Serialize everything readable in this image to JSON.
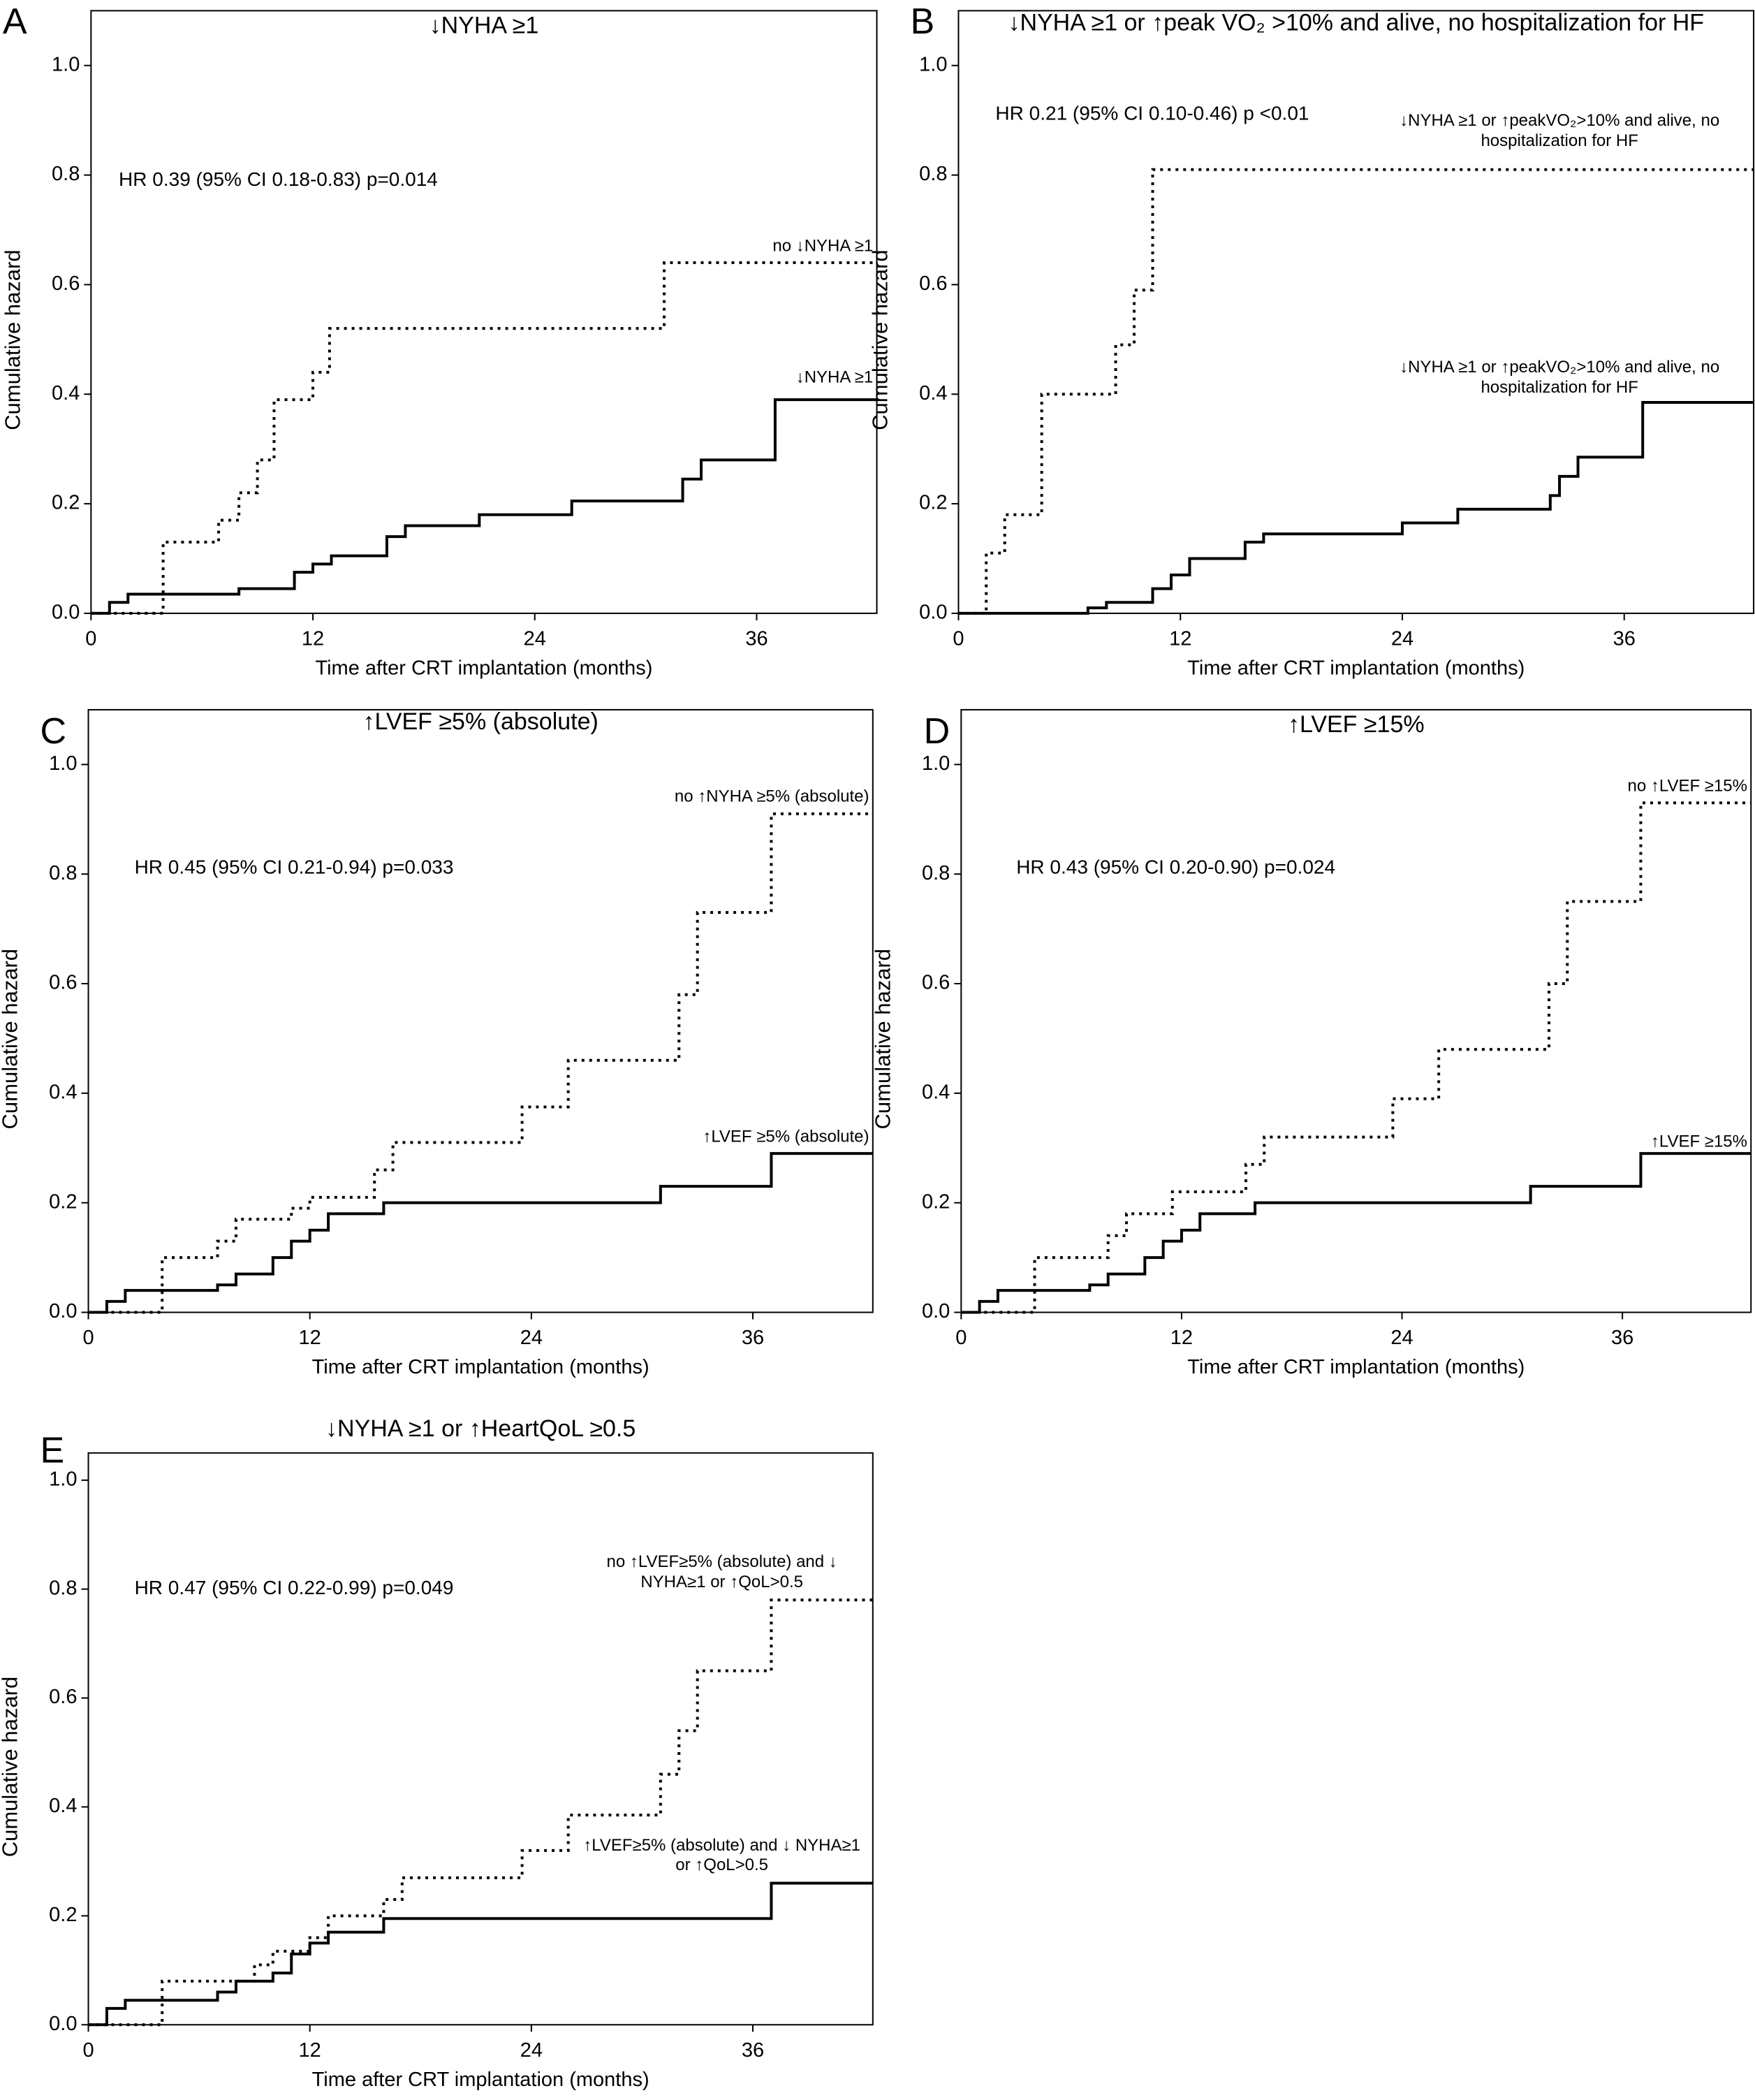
{
  "chart_data": [
    {
      "type": "line",
      "step": "post",
      "panel": "A",
      "title": "↓NYHA ≥1",
      "annotation": "HR 0.39 (95% CI 0.18-0.83) p=0.014",
      "xlabel": "Time after CRT implantation (months)",
      "ylabel": "Cumulative hazard",
      "xlim": [
        0,
        42.5
      ],
      "ylim": [
        0,
        1.1
      ],
      "xticks": [
        0,
        12,
        24,
        36
      ],
      "yticks": [
        {
          "value": 0,
          "label": "0.0"
        },
        0.2,
        0.4,
        0.6,
        0.8,
        {
          "value": 1,
          "label": "1.0"
        }
      ],
      "series": [
        {
          "name": "no ↓NYHA ≥1",
          "color": "#000000",
          "style": "dotted",
          "x": [
            0,
            3.9,
            6.9,
            8,
            9,
            9.9,
            12,
            12.9,
            31,
            42.5
          ],
          "values": [
            0,
            0.13,
            0.17,
            0.22,
            0.28,
            0.39,
            0.44,
            0.52,
            0.64,
            0.64
          ]
        },
        {
          "name": "↓NYHA ≥1",
          "color": "#000000",
          "style": "solid",
          "x": [
            0,
            1,
            2,
            8,
            11,
            12,
            13,
            16,
            17,
            21,
            26,
            32,
            33,
            37,
            42.5
          ],
          "values": [
            0,
            0.02,
            0.035,
            0.045,
            0.075,
            0.09,
            0.105,
            0.14,
            0.16,
            0.18,
            0.205,
            0.245,
            0.28,
            0.39,
            0.39
          ]
        }
      ]
    },
    {
      "type": "line",
      "step": "post",
      "panel": "B",
      "title": "↓NYHA ≥1 or ↑peak VO₂ >10% and alive, no hospitalization for HF",
      "annotation": "HR 0.21 (95% CI 0.10-0.46) p <0.01",
      "xlabel": "Time after CRT implantation (months)",
      "ylabel": "Cumulative hazard",
      "xlim": [
        0,
        43
      ],
      "ylim": [
        0,
        1.1
      ],
      "xticks": [
        0,
        12,
        24,
        36
      ],
      "yticks": [
        {
          "value": 0,
          "label": "0.0"
        },
        0.2,
        0.4,
        0.6,
        0.8,
        {
          "value": 1,
          "label": "1.0"
        }
      ],
      "series": [
        {
          "name": "↓NYHA ≥1 or ↑peakVO₂>10% and alive, no hospitalization for HF",
          "color": "#000000",
          "style": "dotted",
          "x": [
            0,
            1.5,
            2.5,
            4.5,
            8.5,
            9.5,
            10.5,
            43
          ],
          "values": [
            0,
            0.11,
            0.18,
            0.4,
            0.49,
            0.59,
            0.81,
            0.81
          ]
        },
        {
          "name": "↓NYHA ≥1 or ↑peakVO₂>10% and alive, no hospitalization for HF",
          "color": "#000000",
          "style": "solid",
          "x": [
            0,
            7,
            8,
            10.5,
            11.5,
            12.5,
            15.5,
            16.5,
            24,
            27,
            32,
            32.5,
            33.5,
            37,
            43
          ],
          "values": [
            0,
            0.01,
            0.02,
            0.045,
            0.07,
            0.1,
            0.13,
            0.145,
            0.165,
            0.19,
            0.215,
            0.25,
            0.285,
            0.385,
            0.385
          ]
        }
      ]
    },
    {
      "type": "line",
      "step": "post",
      "panel": "C",
      "title": "↑LVEF ≥5% (absolute)",
      "annotation": "HR 0.45 (95% CI 0.21-0.94) p=0.033",
      "xlabel": "Time after CRT implantation (months)",
      "ylabel": "Cumulative hazard",
      "xlim": [
        0,
        42.5
      ],
      "ylim": [
        0,
        1.1
      ],
      "xticks": [
        0,
        12,
        24,
        36
      ],
      "yticks": [
        {
          "value": 0,
          "label": "0.0"
        },
        0.2,
        0.4,
        0.6,
        0.8,
        {
          "value": 1,
          "label": "1.0"
        }
      ],
      "series": [
        {
          "name": "no ↑NYHA ≥5% (absolute)",
          "color": "#000000",
          "style": "dotted",
          "x": [
            0,
            4,
            7,
            8,
            11,
            12,
            15.5,
            16.5,
            23.5,
            26,
            32,
            33,
            37,
            42.5
          ],
          "values": [
            0,
            0.1,
            0.13,
            0.17,
            0.19,
            0.21,
            0.26,
            0.31,
            0.375,
            0.46,
            0.58,
            0.73,
            0.91,
            0.91
          ]
        },
        {
          "name": "↑LVEF ≥5% (absolute)",
          "color": "#000000",
          "style": "solid",
          "x": [
            0,
            1,
            2,
            7,
            8,
            10,
            11,
            12,
            13,
            16,
            31,
            37,
            42.5
          ],
          "values": [
            0,
            0.02,
            0.04,
            0.05,
            0.07,
            0.1,
            0.13,
            0.15,
            0.18,
            0.2,
            0.23,
            0.29,
            0.29
          ]
        }
      ]
    },
    {
      "type": "line",
      "step": "post",
      "panel": "D",
      "title": "↑LVEF ≥15%",
      "annotation": "HR 0.43 (95% CI 0.20-0.90) p=0.024",
      "xlabel": "Time after CRT implantation (months)",
      "ylabel": "Cumulative hazard",
      "xlim": [
        0,
        43
      ],
      "ylim": [
        0,
        1.1
      ],
      "xticks": [
        0,
        12,
        24,
        36
      ],
      "yticks": [
        {
          "value": 0,
          "label": "0.0"
        },
        0.2,
        0.4,
        0.6,
        0.8,
        {
          "value": 1,
          "label": "1.0"
        }
      ],
      "series": [
        {
          "name": "no ↑LVEF ≥15%",
          "color": "#000000",
          "style": "dotted",
          "x": [
            0,
            4,
            8,
            9,
            11.5,
            15.5,
            16.5,
            23.5,
            26,
            32,
            33,
            37,
            43
          ],
          "values": [
            0,
            0.1,
            0.14,
            0.18,
            0.22,
            0.27,
            0.32,
            0.39,
            0.48,
            0.6,
            0.75,
            0.93,
            0.93
          ]
        },
        {
          "name": "↑LVEF ≥15%",
          "color": "#000000",
          "style": "solid",
          "x": [
            0,
            1,
            2,
            7,
            8,
            10,
            11,
            12,
            13,
            16,
            31,
            37,
            43
          ],
          "values": [
            0,
            0.02,
            0.04,
            0.05,
            0.07,
            0.1,
            0.13,
            0.15,
            0.18,
            0.2,
            0.23,
            0.29,
            0.29
          ]
        }
      ]
    },
    {
      "type": "line",
      "step": "post",
      "panel": "E",
      "title": "↓NYHA ≥1 or ↑HeartQoL ≥0.5",
      "annotation": "HR 0.47 (95% CI 0.22-0.99) p=0.049",
      "xlabel": "Time after CRT implantation (months)",
      "ylabel": "Cumulative hazard",
      "xlim": [
        0,
        42.5
      ],
      "ylim": [
        0,
        1.05
      ],
      "xticks": [
        0,
        12,
        24,
        36
      ],
      "yticks": [
        {
          "value": 0,
          "label": "0.0"
        },
        0.2,
        0.4,
        0.6,
        0.8,
        {
          "value": 1,
          "label": "1.0"
        }
      ],
      "series": [
        {
          "name": "no ↑LVEF≥5% (absolute) and ↓ NYHA≥1 or ↑QoL>0.5",
          "color": "#000000",
          "style": "dotted",
          "x": [
            0,
            4,
            9,
            10,
            12,
            13,
            16,
            17,
            23.5,
            26,
            31,
            32,
            33,
            37,
            42.5
          ],
          "values": [
            0,
            0.08,
            0.11,
            0.135,
            0.16,
            0.2,
            0.23,
            0.27,
            0.32,
            0.385,
            0.46,
            0.54,
            0.65,
            0.78,
            0.78
          ]
        },
        {
          "name": "↑LVEF≥5% (absolute) and ↓ NYHA≥1 or ↑QoL>0.5",
          "color": "#000000",
          "style": "solid",
          "x": [
            0,
            1,
            2,
            7,
            8,
            10,
            11,
            12,
            13,
            16,
            37,
            42.5
          ],
          "values": [
            0,
            0.03,
            0.045,
            0.06,
            0.08,
            0.095,
            0.13,
            0.15,
            0.17,
            0.195,
            0.26,
            0.26
          ]
        }
      ]
    }
  ]
}
